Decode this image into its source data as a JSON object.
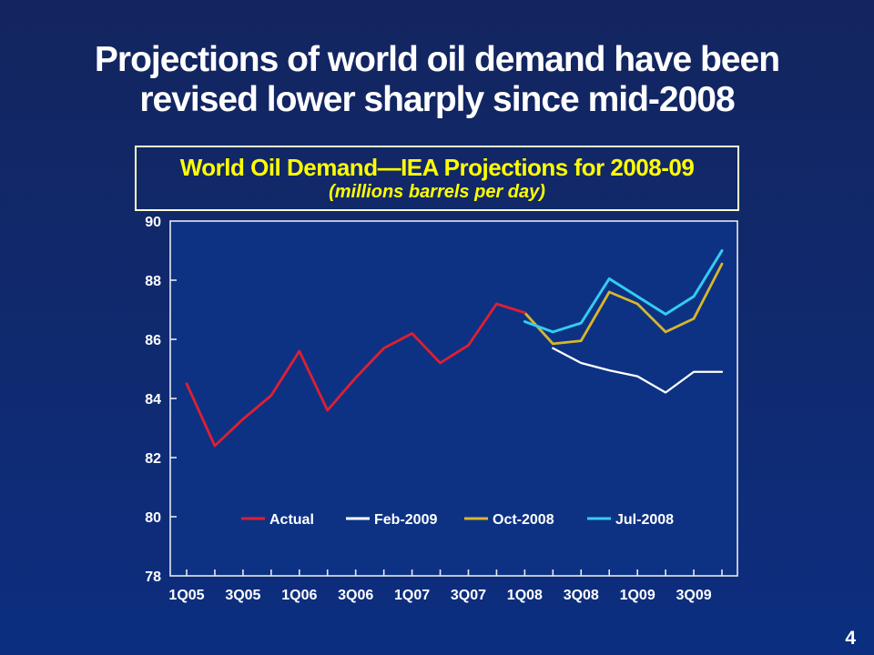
{
  "slide": {
    "title_line1": "Projections of world oil demand have been",
    "title_line2": "revised lower sharply since mid-2008",
    "page_number": "4"
  },
  "chart_data": {
    "type": "line",
    "title": "World Oil Demand—IEA Projections for 2008-09",
    "subtitle": "(millions barrels per day)",
    "title_color": "#ffff00",
    "box_border_color": "#ffffcc",
    "text_color": "#ffffff",
    "axis_color": "#e6e9f0",
    "plot_bg_color": "#0d3284",
    "grid": false,
    "legend_position": "inside-bottom",
    "ylim": [
      78,
      90
    ],
    "y_ticks": [
      78,
      80,
      82,
      84,
      86,
      88,
      90
    ],
    "x_categories": [
      "1Q05",
      "2Q05",
      "3Q05",
      "4Q05",
      "1Q06",
      "2Q06",
      "3Q06",
      "4Q06",
      "1Q07",
      "2Q07",
      "3Q07",
      "4Q07",
      "1Q08",
      "2Q08",
      "3Q08",
      "4Q08",
      "1Q09",
      "2Q09",
      "3Q09",
      "4Q09"
    ],
    "x_tick_labels": [
      "1Q05",
      "3Q05",
      "1Q06",
      "3Q06",
      "1Q07",
      "3Q07",
      "1Q08",
      "3Q08",
      "1Q09",
      "3Q09"
    ],
    "series": [
      {
        "name": "Actual",
        "color": "#e01f30",
        "stroke_width": 2.8,
        "start_index": 0,
        "values": [
          84.5,
          82.4,
          83.3,
          84.1,
          85.6,
          83.6,
          84.7,
          85.7,
          86.2,
          85.2,
          85.8,
          87.2,
          86.9
        ]
      },
      {
        "name": "Feb-2009",
        "color": "#ffffff",
        "stroke_width": 2.3,
        "start_index": 13,
        "values": [
          85.7,
          85.2,
          84.95,
          84.75,
          84.2,
          84.9,
          84.9
        ]
      },
      {
        "name": "Oct-2008",
        "color": "#d8b62a",
        "stroke_width": 2.8,
        "start_index": 12,
        "values": [
          86.9,
          85.85,
          85.95,
          87.6,
          87.2,
          86.25,
          86.7,
          88.55
        ]
      },
      {
        "name": "Jul-2008",
        "color": "#33cdf2",
        "stroke_width": 3.0,
        "start_index": 12,
        "values": [
          86.6,
          86.25,
          86.55,
          88.05,
          87.45,
          86.85,
          87.45,
          89.0
        ]
      }
    ]
  }
}
